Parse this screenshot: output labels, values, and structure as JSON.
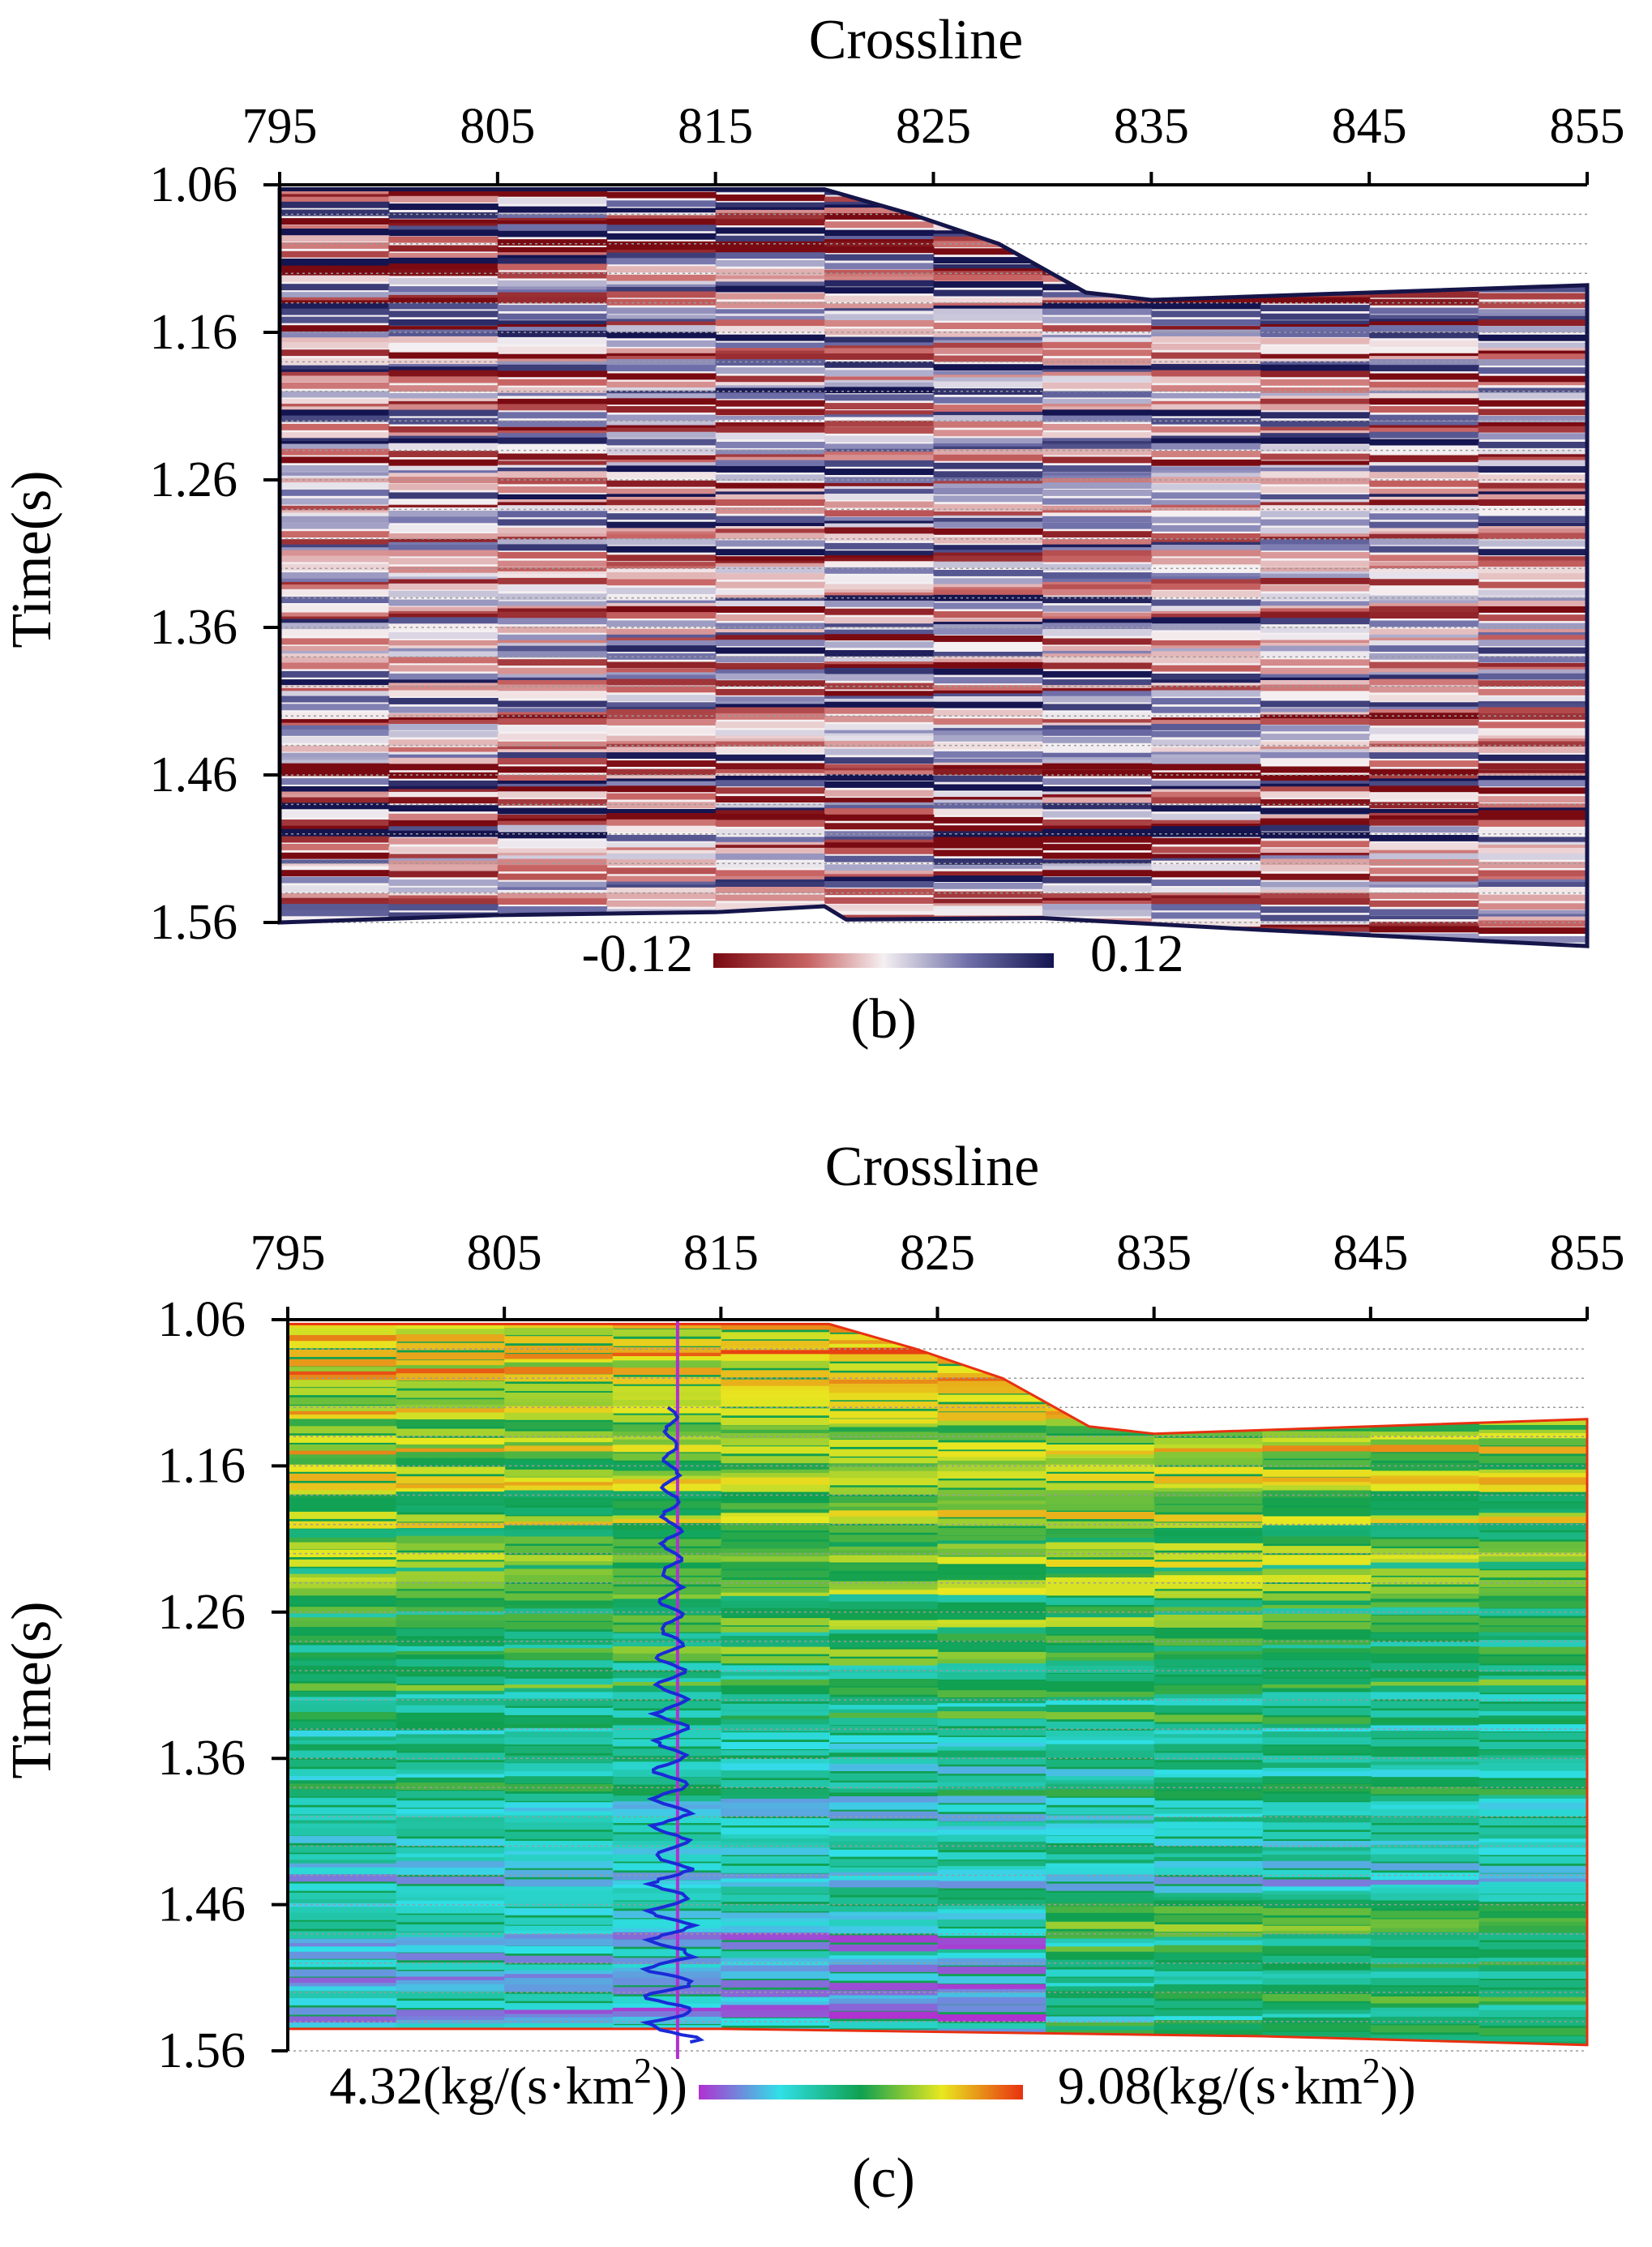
{
  "chart_data": [
    {
      "type": "heatmap",
      "panel_label": "(b)",
      "title": "Crossline",
      "xlabel": "Crossline",
      "ylabel": "Time(s)",
      "xticks": [
        "795",
        "805",
        "815",
        "825",
        "835",
        "845",
        "855"
      ],
      "xlim": [
        795,
        855
      ],
      "yticks": [
        "1.06",
        "1.16",
        "1.26",
        "1.36",
        "1.46",
        "1.56"
      ],
      "ylim": [
        1.06,
        1.56
      ],
      "colorbar": {
        "min_label": "-0.12",
        "max_label": "0.12",
        "min": -0.12,
        "max": 0.12,
        "colors": [
          "#7a0a12",
          "#c86464",
          "#f5f0f2",
          "#6e6ea8",
          "#141450"
        ]
      },
      "top_boundary": [
        [
          795,
          1.063
        ],
        [
          820,
          1.063
        ],
        [
          824,
          1.08
        ],
        [
          828,
          1.1
        ],
        [
          832,
          1.133
        ],
        [
          835,
          1.138
        ],
        [
          855,
          1.128
        ]
      ],
      "bottom_boundary": [
        [
          795,
          1.56
        ],
        [
          805,
          1.555
        ],
        [
          815,
          1.553
        ],
        [
          820,
          1.549
        ],
        [
          821,
          1.558
        ],
        [
          830,
          1.557
        ],
        [
          840,
          1.565
        ],
        [
          855,
          1.576
        ]
      ],
      "grid": true
    },
    {
      "type": "heatmap",
      "panel_label": "(c)",
      "title": "Crossline",
      "xlabel": "Crossline",
      "ylabel": "Time(s)",
      "xticks": [
        "795",
        "805",
        "815",
        "825",
        "835",
        "845",
        "855"
      ],
      "xlim": [
        795,
        855
      ],
      "yticks": [
        "1.06",
        "1.16",
        "1.26",
        "1.36",
        "1.46",
        "1.56"
      ],
      "ylim": [
        1.06,
        1.56
      ],
      "colorbar": {
        "min_label": "4.32(kg/(s·km",
        "min_sup": "2",
        "min_suffix": "))",
        "max_label": "9.08(kg/(s·km",
        "max_sup": "2",
        "max_suffix": "))",
        "min": 4.32,
        "max": 9.08,
        "colors": [
          "#b030d0",
          "#30e0e8",
          "#10a050",
          "#e8e820",
          "#e83010"
        ]
      },
      "well_log_crossline": 813,
      "top_boundary": [
        [
          795,
          1.063
        ],
        [
          820,
          1.063
        ],
        [
          824,
          1.08
        ],
        [
          828,
          1.1
        ],
        [
          832,
          1.133
        ],
        [
          835,
          1.138
        ],
        [
          855,
          1.128
        ]
      ],
      "bottom_boundary": [
        [
          795,
          1.545
        ],
        [
          815,
          1.545
        ],
        [
          830,
          1.548
        ],
        [
          840,
          1.55
        ],
        [
          855,
          1.556
        ]
      ],
      "grid": true
    }
  ]
}
